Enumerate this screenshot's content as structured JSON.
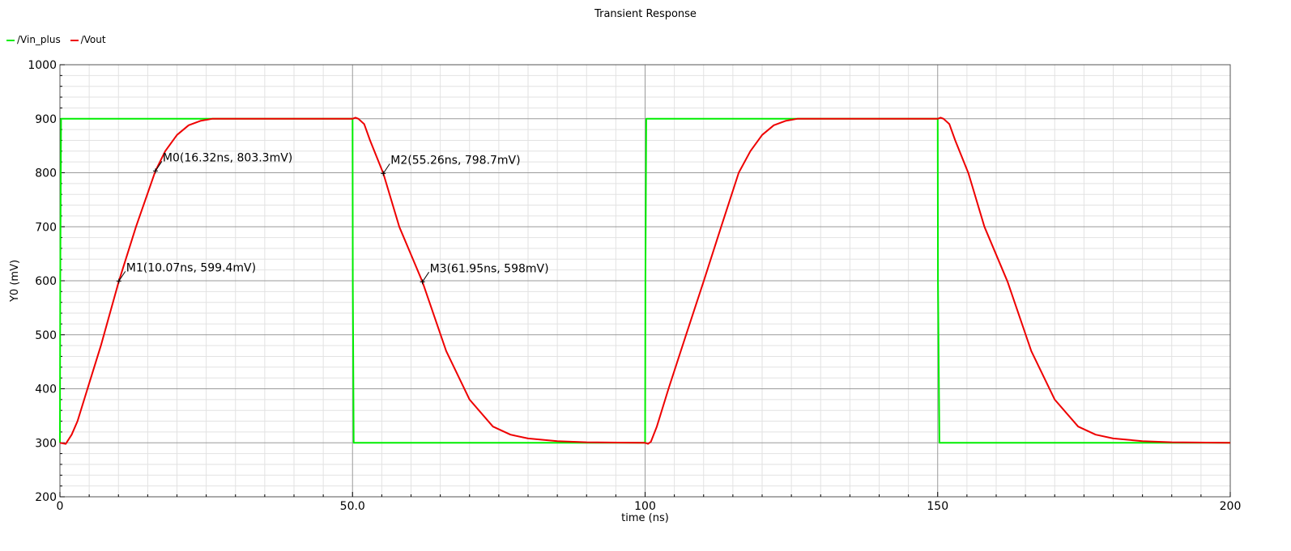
{
  "chart_data": {
    "type": "line",
    "title": "Transient Response",
    "xlabel": "time (ns)",
    "ylabel": "Y0 (mV)",
    "xlim": [
      0,
      200
    ],
    "ylim": [
      200,
      1000
    ],
    "x_ticks": [
      0,
      50,
      100,
      150,
      200
    ],
    "x_tick_labels": [
      "0",
      "50.0",
      "100",
      "150",
      "200"
    ],
    "y_ticks": [
      200,
      300,
      400,
      500,
      600,
      700,
      800,
      900,
      1000
    ],
    "y_tick_labels": [
      "200",
      "300",
      "400",
      "500",
      "600",
      "700",
      "800",
      "900",
      "1000"
    ],
    "grid": true,
    "legend_position": "top-left",
    "series": [
      {
        "name": "/Vin_plus",
        "color": "#00ee00",
        "x": [
          0,
          0.05,
          0.2,
          50,
          50.05,
          50.2,
          100,
          100.05,
          100.2,
          150,
          150.05,
          150.3,
          200
        ],
        "y": [
          300,
          600,
          900,
          900,
          600,
          300,
          300,
          600,
          900,
          900,
          600,
          300,
          300
        ]
      },
      {
        "name": "/Vout",
        "color": "#ee0000",
        "x": [
          0,
          1,
          2,
          3,
          5,
          7,
          10.07,
          13,
          16.32,
          18,
          20,
          22,
          24,
          26,
          28,
          30,
          50,
          50.5,
          51,
          52,
          53,
          55.26,
          58,
          61.95,
          66,
          70,
          74,
          77,
          80,
          85,
          90,
          100,
          100.5,
          101,
          102,
          104,
          107,
          110,
          113,
          116,
          118,
          120,
          122,
          124,
          126,
          128,
          130,
          150,
          150.5,
          151,
          152,
          153,
          155.26,
          158,
          161.95,
          166,
          170,
          174,
          177,
          180,
          185,
          190,
          200
        ],
        "y": [
          300,
          298,
          315,
          340,
          410,
          480,
          599.4,
          700,
          803.3,
          840,
          870,
          888,
          896,
          900,
          900,
          900,
          900,
          902,
          900,
          890,
          860,
          798.7,
          700,
          598,
          470,
          380,
          330,
          315,
          308,
          303,
          301,
          300,
          298,
          302,
          330,
          400,
          500,
          599,
          700,
          800,
          840,
          870,
          888,
          896,
          900,
          900,
          900,
          900,
          902,
          900,
          890,
          860,
          798.7,
          700,
          598,
          470,
          380,
          330,
          315,
          308,
          303,
          301,
          300
        ]
      }
    ],
    "markers": [
      {
        "label": "M0(16.32ns, 803.3mV)",
        "x": 16.32,
        "y": 803.3
      },
      {
        "label": "M1(10.07ns, 599.4mV)",
        "x": 10.07,
        "y": 599.4
      },
      {
        "label": "M2(55.26ns, 798.7mV)",
        "x": 55.26,
        "y": 798.7
      },
      {
        "label": "M3(61.95ns, 598mV)",
        "x": 61.95,
        "y": 598
      }
    ]
  }
}
